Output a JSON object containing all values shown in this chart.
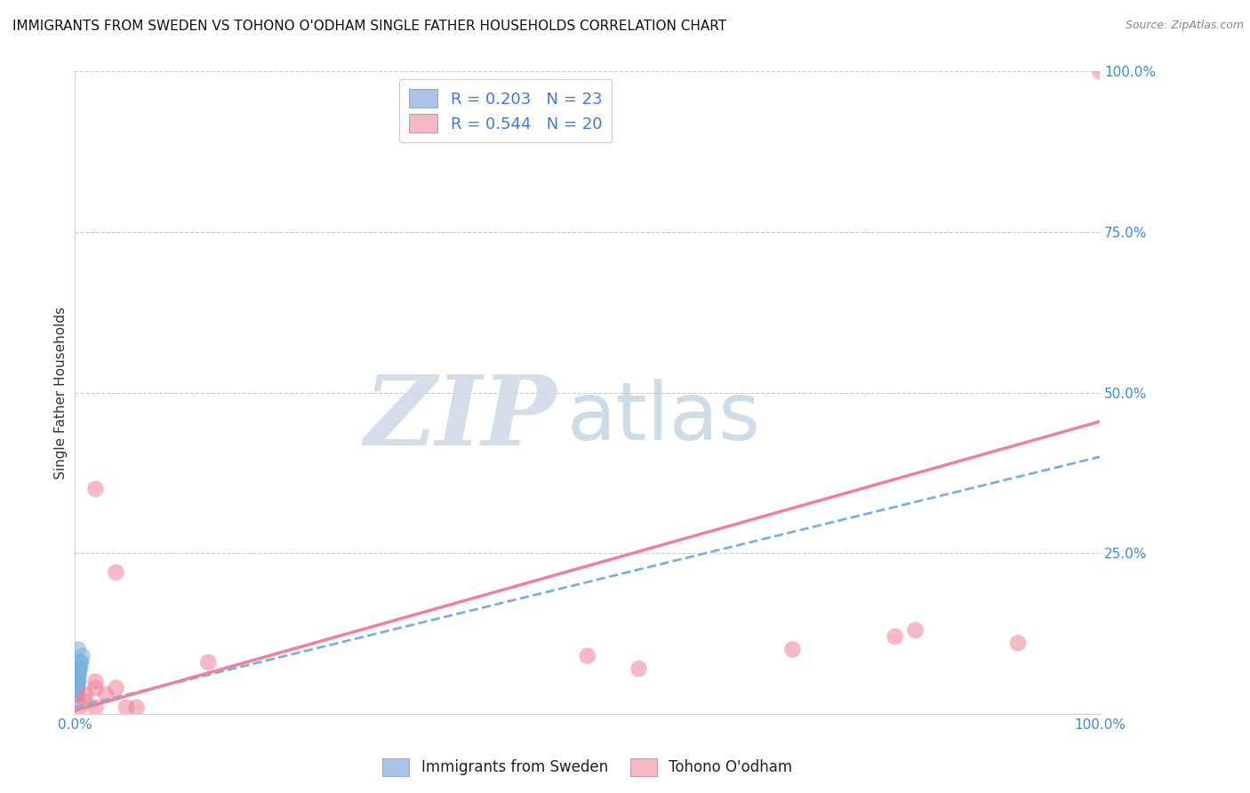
{
  "title": "IMMIGRANTS FROM SWEDEN VS TOHONO O'ODHAM SINGLE FATHER HOUSEHOLDS CORRELATION CHART",
  "source": "Source: ZipAtlas.com",
  "ylabel": "Single Father Households",
  "xlim": [
    0,
    1.0
  ],
  "ylim": [
    0,
    1.0
  ],
  "legend_items": [
    {
      "label": "R = 0.203   N = 23",
      "color": "#aac4e8"
    },
    {
      "label": "R = 0.544   N = 20",
      "color": "#f5b8c4"
    }
  ],
  "bottom_legend": [
    "Immigrants from Sweden",
    "Tohono O'odham"
  ],
  "blue_scatter_x": [
    0.001,
    0.002,
    0.003,
    0.002,
    0.001,
    0.004,
    0.003,
    0.005,
    0.002,
    0.001,
    0.003,
    0.004,
    0.002,
    0.006,
    0.003,
    0.002,
    0.001,
    0.004,
    0.003,
    0.005,
    0.007,
    0.002,
    0.003
  ],
  "blue_scatter_y": [
    0.04,
    0.05,
    0.06,
    0.03,
    0.04,
    0.07,
    0.05,
    0.08,
    0.04,
    0.03,
    0.06,
    0.07,
    0.04,
    0.08,
    0.05,
    0.04,
    0.03,
    0.06,
    0.05,
    0.07,
    0.09,
    0.04,
    0.1
  ],
  "pink_scatter_x": [
    0.02,
    0.04,
    0.5,
    0.7,
    0.82,
    0.005,
    0.01,
    0.01,
    0.02,
    0.02,
    0.03,
    0.04,
    0.05,
    0.06,
    1.0,
    0.02,
    0.13,
    0.55,
    0.8,
    0.92
  ],
  "pink_scatter_y": [
    0.35,
    0.22,
    0.09,
    0.1,
    0.13,
    0.01,
    0.02,
    0.03,
    0.04,
    0.05,
    0.03,
    0.04,
    0.01,
    0.01,
    1.0,
    0.01,
    0.08,
    0.07,
    0.12,
    0.11
  ],
  "blue_line_x": [
    0.0,
    1.0
  ],
  "blue_line_y": [
    0.01,
    0.4
  ],
  "pink_line_x": [
    0.0,
    1.0
  ],
  "pink_line_y": [
    0.005,
    0.455
  ],
  "blue_color": "#7ab0de",
  "pink_color": "#f08098",
  "blue_fill": "#aac4e8",
  "pink_fill": "#f5b8c4",
  "grid_color": "#cccccc",
  "background_color": "#ffffff",
  "watermark_zip_color": "#c8d8e8",
  "watermark_atlas_color": "#a8c0d8",
  "scatter_size": 180
}
